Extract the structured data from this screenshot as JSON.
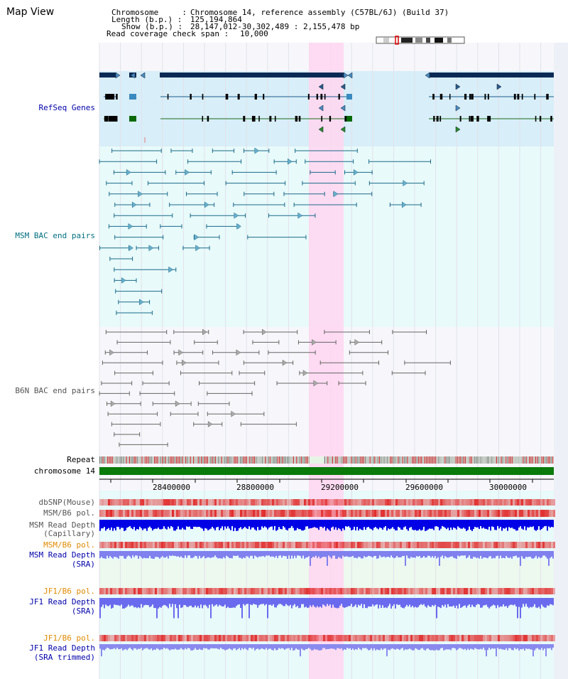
{
  "header": {
    "title": "Map View",
    "chromosome_key": "Chromosome     :",
    "chromosome_value": "Chromosome 14, reference assembly (C57BL/6J) (Build 37)",
    "length_key": "Length (b.p.) :",
    "length_value": "125,194,864",
    "show_key": "Show (b.p.) :",
    "show_value": "28,147,012-30,302,489 : 2,155,478 bp",
    "coverage_key": "Read coverage check span :",
    "coverage_value": "10,000"
  },
  "tracks": {
    "refseq": "RefSeq Genes",
    "msm_bac": "MSM BAC end pairs",
    "b6n_bac": "B6N BAC end pairs",
    "repeat": "Repeat",
    "chromosome": "chromosome 14"
  },
  "axis": {
    "ticks": [
      "28400000",
      "28800000",
      "29200000",
      "29600000",
      "30000000"
    ]
  },
  "lower_tracks": {
    "dbsnp": "dbSNP(Mouse)",
    "msm_b6_pol": "MSM/B6 pol.",
    "msm_depth_cap_1": "MSM Read Depth",
    "msm_depth_cap_2": "(Capillary)",
    "msm_b6_pol_2": "MSM/B6 pol.",
    "msm_depth_sra_1": "MSM Read Depth",
    "msm_depth_sra_2": "(SRA)",
    "jf1_b6_pol": "JF1/B6 pol.",
    "jf1_depth_sra_1": "JF1 Read Depth",
    "jf1_depth_sra_2": "(SRA)",
    "jf1_b6_pol_2": "JF1/B6 pol.",
    "jf1_depth_trim_1": "JF1 Read Depth",
    "jf1_depth_trim_2": "(SRA trimmed)"
  },
  "colors": {
    "refseq_bg": "#d8eef8",
    "msm_bg": "#e8fafa",
    "highlight": "#ffd6f0",
    "refseq_navy": "#0a2a55",
    "msm_line": "#1a6a8a",
    "b6n_line": "#666666",
    "chromosome_bar": "#0a7a0a",
    "label_blue": "#0000aa",
    "label_teal": "#006f7f",
    "label_orange": "#e08a00",
    "label_gray": "#555555"
  }
}
